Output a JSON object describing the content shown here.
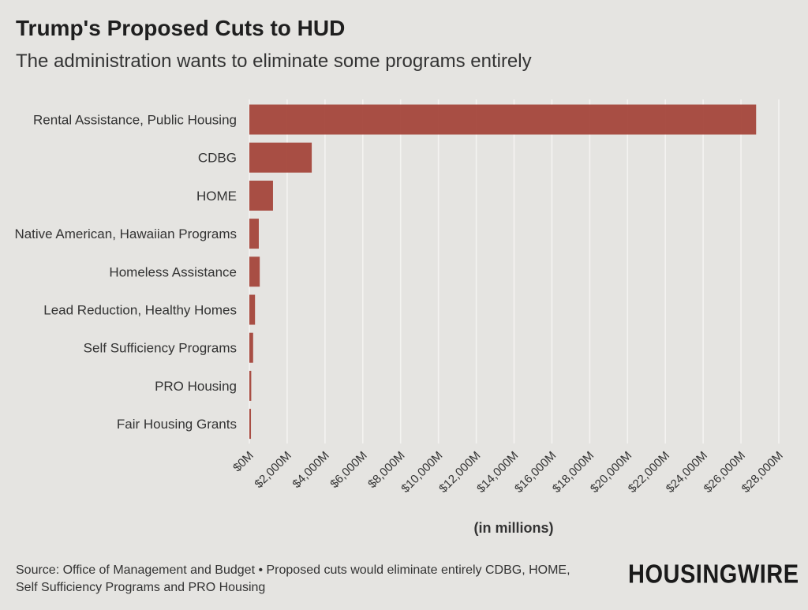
{
  "header": {
    "title": "Trump's Proposed Cuts to HUD",
    "subtitle": "The administration wants to eliminate some programs entirely"
  },
  "chart_data": {
    "type": "bar",
    "orientation": "horizontal",
    "categories": [
      "Rental Assistance, Public Housing",
      "CDBG",
      "HOME",
      "Native American, Hawaiian Programs",
      "Homeless Assistance",
      "Lead Reduction, Healthy Homes",
      "Self Sufficiency Programs",
      "PRO Housing",
      "Fair Housing Grants"
    ],
    "values": [
      26800,
      3300,
      1250,
      500,
      550,
      300,
      200,
      100,
      85
    ],
    "xlim": [
      0,
      28000
    ],
    "xticks": [
      0,
      2000,
      4000,
      6000,
      8000,
      10000,
      12000,
      14000,
      16000,
      18000,
      20000,
      22000,
      24000,
      26000,
      28000
    ],
    "xtick_labels": [
      "$0M",
      "$2,000M",
      "$4,000M",
      "$6,000M",
      "$8,000M",
      "$10,000M",
      "$12,000M",
      "$14,000M",
      "$16,000M",
      "$18,000M",
      "$20,000M",
      "$22,000M",
      "$24,000M",
      "$26,000M",
      "$28,000M"
    ],
    "xlabel": "(in millions)",
    "grid": true,
    "bar_color": "#a4463b"
  },
  "footer": {
    "source_line1": "Source: Office of Management and Budget • Proposed cuts would eliminate entirely CDBG, HOME,",
    "source_line2": "Self Sufficiency Programs and PRO Housing"
  },
  "brand": {
    "logo_text": "HOUSINGWIRE"
  }
}
